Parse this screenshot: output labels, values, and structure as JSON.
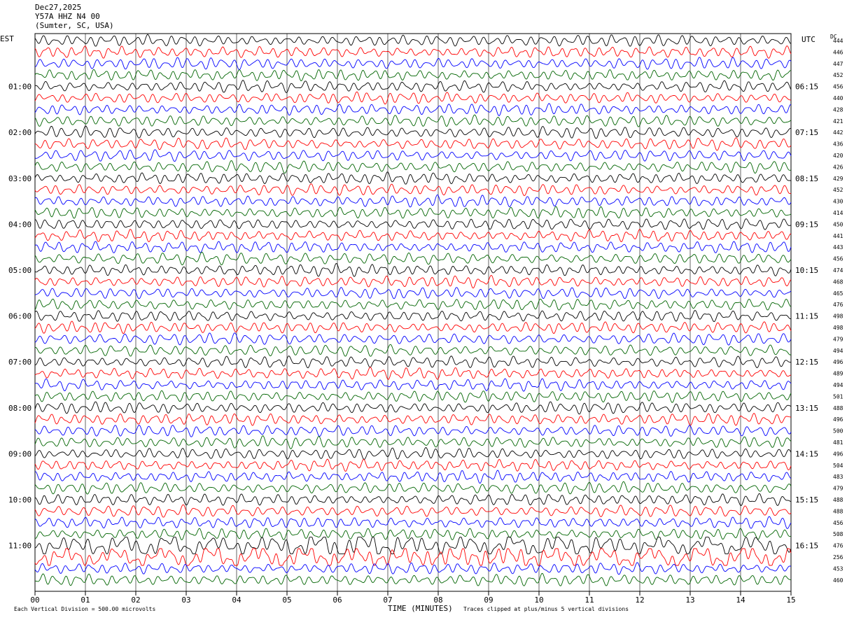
{
  "header": {
    "date": "Dec27,2025",
    "station": "Y57A HHZ N4 00",
    "location": "(Sumter, SC, USA)"
  },
  "corner_labels": {
    "left": "EST",
    "right": "UTC",
    "dc": "DC"
  },
  "footer": {
    "scale_text": "Each Vertical Division =  500.00 microvolts",
    "xlabel": "TIME (MINUTES)",
    "clip_text": "Traces clipped at plus/minus 5 vertical divisions"
  },
  "colors": {
    "trace": [
      "#000000",
      "#ff0000",
      "#0000ff",
      "#006400"
    ],
    "grid": "#000000"
  },
  "chart_data": {
    "type": "line",
    "title": "Dec27,2025 Y57A HHZ N4 00 (Sumter, SC, USA)",
    "xlabel": "TIME (MINUTES)",
    "x_ticks": [
      "00",
      "01",
      "02",
      "03",
      "04",
      "05",
      "06",
      "07",
      "08",
      "09",
      "10",
      "11",
      "12",
      "13",
      "14",
      "15"
    ],
    "xlim": [
      0,
      15
    ],
    "left_hour_labels": [
      "01:00",
      "02:00",
      "03:00",
      "04:00",
      "05:00",
      "06:00",
      "07:00",
      "08:00",
      "09:00",
      "10:00",
      "11:00"
    ],
    "right_hour_labels": [
      "06:15",
      "07:15",
      "08:15",
      "09:15",
      "10:15",
      "11:15",
      "12:15",
      "13:15",
      "14:15",
      "15:15",
      "16:15"
    ],
    "dc_offsets": [
      444,
      446,
      447,
      452,
      456,
      440,
      428,
      421,
      442,
      436,
      420,
      426,
      429,
      452,
      430,
      414,
      450,
      441,
      443,
      456,
      474,
      468,
      465,
      476,
      498,
      498,
      479,
      494,
      496,
      489,
      494,
      501,
      488,
      496,
      500,
      481,
      496,
      504,
      483,
      479,
      488,
      488,
      456,
      508,
      476,
      256,
      453,
      460
    ],
    "grid": true,
    "traces_per_hour": 4,
    "amplitude_per_division_microvolts": 500.0
  }
}
